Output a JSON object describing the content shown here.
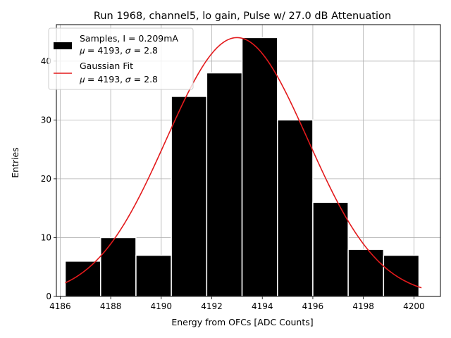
{
  "chart_data": {
    "type": "bar",
    "title": "Run 1968, channel5, lo gain, Pulse w/ 27.0 dB Attenuation",
    "xlabel": "Energy from OFCs [ADC Counts]",
    "ylabel": "Entries",
    "xlim": [
      4185.85,
      4201.05
    ],
    "ylim": [
      0,
      46.2
    ],
    "grid": true,
    "legend_position": "top-left",
    "x_ticks": [
      4186,
      4188,
      4190,
      4192,
      4194,
      4196,
      4198,
      4200
    ],
    "y_ticks": [
      0,
      10,
      20,
      30,
      40
    ],
    "bins": {
      "edges": [
        4186.2,
        4187.6,
        4189.0,
        4190.4,
        4191.8,
        4193.2,
        4194.6,
        4196.0,
        4197.4,
        4198.8,
        4200.2
      ],
      "counts": [
        6,
        10,
        7,
        34,
        38,
        44,
        30,
        16,
        8,
        7
      ],
      "color": "#000000",
      "edge_color": "#ffffff"
    },
    "fit": {
      "mu": 4193.0,
      "sigma": 2.8,
      "amplitude": 44,
      "x_range": [
        4186.2,
        4200.3
      ],
      "color": "#e31a1c"
    },
    "legend": [
      {
        "line1": "Samples, I = 0.209mA",
        "line2": "𝜇 = 4193, 𝜎 = 2.8",
        "kind": "patch"
      },
      {
        "line1": "Gaussian Fit",
        "line2": "𝜇 = 4193, 𝜎 = 2.8",
        "kind": "line"
      }
    ]
  }
}
